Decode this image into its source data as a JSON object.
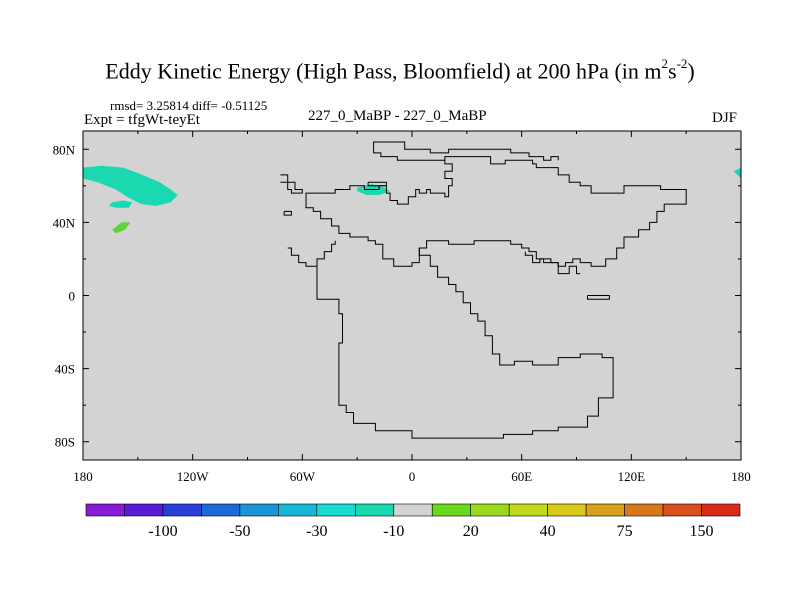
{
  "chart_data": {
    "type": "heatmap",
    "title_main": "Eddy Kinetic Energy (High Pass, Bloomfield) at 200 hPa (in m",
    "title_sup1": "2",
    "title_mid": "s",
    "title_sup2": "-2",
    "title_end": ")",
    "stats": "rmsd= 3.25814 diff= -0.51125",
    "left_label": "Expt = tfgWt-teyEt",
    "center_label": "227_0_MaBP - 227_0_MaBP",
    "right_label": "DJF",
    "x_ticks": [
      {
        "value": -180,
        "label": "180"
      },
      {
        "value": -120,
        "label": "120W"
      },
      {
        "value": -60,
        "label": "60W"
      },
      {
        "value": 0,
        "label": "0"
      },
      {
        "value": 60,
        "label": "60E"
      },
      {
        "value": 120,
        "label": "120E"
      },
      {
        "value": 180,
        "label": "180"
      }
    ],
    "y_ticks": [
      {
        "value": 80,
        "label": "80N"
      },
      {
        "value": 40,
        "label": "40N"
      },
      {
        "value": 0,
        "label": "0"
      },
      {
        "value": -40,
        "label": "40S"
      },
      {
        "value": -80,
        "label": "80S"
      }
    ],
    "xlim": [
      -180,
      180
    ],
    "ylim": [
      -90,
      90
    ],
    "background_color": "#d3d3d3",
    "colorbar": {
      "colors": [
        "#8a1ad9",
        "#5a1ad9",
        "#2a3fd9",
        "#1a6ad9",
        "#1a95d9",
        "#17b7d9",
        "#1ad9d0",
        "#1ad9b0",
        "#d3d3d3",
        "#6ad91a",
        "#9ad91a",
        "#c0d91a",
        "#d9c81a",
        "#d9a01a",
        "#d9781a",
        "#d9501a",
        "#d92a1a"
      ],
      "labels": [
        {
          "index": 2,
          "text": "-100"
        },
        {
          "index": 4,
          "text": "-50"
        },
        {
          "index": 6,
          "text": "-30"
        },
        {
          "index": 8,
          "text": "-10"
        },
        {
          "index": 10,
          "text": "20"
        },
        {
          "index": 12,
          "text": "40"
        },
        {
          "index": 14,
          "text": "75"
        },
        {
          "index": 16,
          "text": "150"
        }
      ]
    },
    "anomaly_regions": [
      {
        "name": "north-pacific-negative",
        "color": "#1ad9b0",
        "points": [
          [
            -180,
            70
          ],
          [
            -170,
            71
          ],
          [
            -158,
            70
          ],
          [
            -150,
            67
          ],
          [
            -138,
            62
          ],
          [
            -132,
            58
          ],
          [
            -128,
            55
          ],
          [
            -132,
            51
          ],
          [
            -140,
            49
          ],
          [
            -148,
            50
          ],
          [
            -156,
            54
          ],
          [
            -162,
            58
          ],
          [
            -172,
            62
          ],
          [
            -180,
            64
          ]
        ]
      },
      {
        "name": "pacific-small-negative",
        "color": "#1ad9b0",
        "points": [
          [
            -164,
            51
          ],
          [
            -158,
            52
          ],
          [
            -153,
            51
          ],
          [
            -155,
            48
          ],
          [
            -162,
            48
          ],
          [
            -166,
            49
          ]
        ]
      },
      {
        "name": "north-atlantic-negative",
        "color": "#1ad9b0",
        "points": [
          [
            -30,
            59
          ],
          [
            -22,
            61
          ],
          [
            -15,
            59
          ],
          [
            -12,
            57
          ],
          [
            -18,
            55
          ],
          [
            -25,
            55
          ],
          [
            -30,
            57
          ]
        ]
      },
      {
        "name": "pacific-positive",
        "color": "#5fd33a",
        "points": [
          [
            -164,
            36
          ],
          [
            -159,
            40
          ],
          [
            -154,
            40
          ],
          [
            -157,
            36
          ],
          [
            -162,
            34
          ]
        ]
      },
      {
        "name": "east-edge-negative",
        "color": "#1ad9b0",
        "points": [
          [
            176,
            68
          ],
          [
            180,
            70
          ],
          [
            180,
            64
          ]
        ]
      }
    ],
    "coastlines": [
      [
        [
          -21,
          84
        ],
        [
          -21,
          78
        ],
        [
          -17,
          78
        ],
        [
          -17,
          76
        ],
        [
          -8,
          76
        ],
        [
          -8,
          74
        ],
        [
          18,
          74
        ],
        [
          18,
          76
        ],
        [
          43,
          76
        ],
        [
          43,
          72
        ],
        [
          51,
          72
        ],
        [
          51,
          74
        ],
        [
          66,
          74
        ],
        [
          66,
          72
        ],
        [
          68,
          72
        ],
        [
          68,
          70
        ],
        [
          80,
          70
        ],
        [
          80,
          66
        ],
        [
          86,
          66
        ],
        [
          86,
          62
        ],
        [
          92,
          62
        ],
        [
          92,
          60
        ],
        [
          98,
          60
        ],
        [
          98,
          56
        ],
        [
          116,
          56
        ],
        [
          116,
          60
        ],
        [
          136,
          60
        ],
        [
          136,
          58
        ],
        [
          150,
          58
        ],
        [
          150,
          50
        ],
        [
          138,
          50
        ],
        [
          138,
          46
        ],
        [
          134,
          46
        ],
        [
          134,
          40
        ],
        [
          130,
          40
        ],
        [
          130,
          36
        ],
        [
          124,
          36
        ],
        [
          124,
          32
        ],
        [
          116,
          32
        ],
        [
          116,
          26
        ],
        [
          112,
          26
        ],
        [
          112,
          20
        ],
        [
          106,
          20
        ],
        [
          106,
          16
        ],
        [
          98,
          16
        ],
        [
          98,
          18
        ],
        [
          92,
          18
        ],
        [
          92,
          20
        ],
        [
          88,
          20
        ],
        [
          88,
          18
        ],
        [
          84,
          18
        ],
        [
          84,
          16
        ],
        [
          80,
          16
        ],
        [
          80,
          18
        ],
        [
          72,
          18
        ],
        [
          72,
          20
        ],
        [
          68,
          20
        ],
        [
          68,
          24
        ],
        [
          64,
          24
        ],
        [
          64,
          26
        ],
        [
          60,
          26
        ],
        [
          60,
          28
        ],
        [
          54,
          28
        ],
        [
          54,
          30
        ],
        [
          34,
          30
        ],
        [
          34,
          28
        ],
        [
          20,
          28
        ],
        [
          20,
          30
        ],
        [
          8,
          30
        ],
        [
          8,
          26
        ],
        [
          4,
          26
        ],
        [
          4,
          18
        ],
        [
          0,
          18
        ],
        [
          0,
          16
        ],
        [
          -10,
          16
        ],
        [
          -10,
          20
        ],
        [
          -16,
          20
        ],
        [
          -16,
          28
        ],
        [
          -20,
          28
        ],
        [
          -20,
          30
        ],
        [
          -24,
          30
        ],
        [
          -24,
          32
        ],
        [
          -34,
          32
        ],
        [
          -34,
          34
        ],
        [
          -40,
          34
        ],
        [
          -40,
          38
        ],
        [
          -44,
          38
        ],
        [
          -44,
          42
        ],
        [
          -50,
          42
        ],
        [
          -50,
          46
        ],
        [
          -54,
          46
        ],
        [
          -54,
          48
        ],
        [
          -58,
          48
        ],
        [
          -58,
          56
        ],
        [
          -42,
          56
        ],
        [
          -42,
          58
        ],
        [
          -34,
          58
        ],
        [
          -34,
          60
        ],
        [
          -26,
          60
        ],
        [
          -26,
          58
        ],
        [
          -18,
          58
        ],
        [
          -18,
          60
        ],
        [
          -14,
          60
        ],
        [
          -14,
          56
        ],
        [
          -12,
          56
        ],
        [
          -12,
          52
        ],
        [
          -8,
          52
        ],
        [
          -8,
          50
        ],
        [
          -2,
          50
        ],
        [
          -2,
          54
        ],
        [
          2,
          54
        ],
        [
          2,
          58
        ],
        [
          4,
          58
        ],
        [
          4,
          56
        ],
        [
          8,
          56
        ],
        [
          8,
          58
        ],
        [
          10,
          58
        ],
        [
          10,
          56
        ],
        [
          18,
          56
        ],
        [
          18,
          54
        ],
        [
          20,
          54
        ],
        [
          20,
          60
        ],
        [
          22,
          60
        ],
        [
          22,
          64
        ],
        [
          18,
          64
        ],
        [
          18,
          68
        ],
        [
          22,
          68
        ],
        [
          22,
          72
        ],
        [
          18,
          72
        ],
        [
          18,
          74
        ],
        [
          -8,
          74
        ],
        [
          -8,
          76
        ],
        [
          -17,
          76
        ],
        [
          -17,
          78
        ],
        [
          -21,
          78
        ],
        [
          -21,
          84
        ],
        [
          -4,
          84
        ],
        [
          -4,
          80
        ],
        [
          10,
          80
        ],
        [
          10,
          78
        ],
        [
          20,
          78
        ],
        [
          20,
          80
        ],
        [
          54,
          80
        ],
        [
          54,
          78
        ],
        [
          64,
          78
        ],
        [
          64,
          76
        ],
        [
          72,
          76
        ],
        [
          72,
          74
        ],
        [
          76,
          74
        ],
        [
          76,
          76
        ],
        [
          80,
          76
        ],
        [
          80,
          74
        ]
      ],
      [
        [
          -72,
          66
        ],
        [
          -68,
          66
        ],
        [
          -68,
          62
        ],
        [
          -64,
          62
        ],
        [
          -64,
          58
        ],
        [
          -60,
          58
        ],
        [
          -60,
          56
        ],
        [
          -66,
          56
        ],
        [
          -66,
          58
        ],
        [
          -68,
          58
        ],
        [
          -68,
          62
        ],
        [
          -72,
          62
        ]
      ],
      [
        [
          -70,
          46
        ],
        [
          -66,
          46
        ],
        [
          -66,
          44
        ],
        [
          -70,
          44
        ],
        [
          -70,
          46
        ]
      ],
      [
        [
          -68,
          26
        ],
        [
          -66,
          26
        ],
        [
          -66,
          22
        ],
        [
          -62,
          22
        ],
        [
          -62,
          18
        ],
        [
          -58,
          18
        ],
        [
          -58,
          16
        ],
        [
          -52,
          16
        ],
        [
          -52,
          20
        ],
        [
          -48,
          20
        ],
        [
          -48,
          24
        ],
        [
          -44,
          24
        ],
        [
          -44,
          28
        ],
        [
          -42,
          28
        ],
        [
          -42,
          30
        ]
      ],
      [
        [
          -52,
          16
        ],
        [
          -52,
          -2
        ],
        [
          -40,
          -2
        ],
        [
          -40,
          -10
        ],
        [
          -38,
          -10
        ],
        [
          -38,
          -26
        ],
        [
          -40,
          -26
        ],
        [
          -40,
          -60
        ],
        [
          -36,
          -60
        ],
        [
          -36,
          -64
        ],
        [
          -32,
          -64
        ],
        [
          -32,
          -70
        ],
        [
          -20,
          -70
        ],
        [
          -20,
          -74
        ],
        [
          0,
          -74
        ],
        [
          0,
          -78
        ],
        [
          50,
          -78
        ],
        [
          50,
          -76
        ],
        [
          66,
          -76
        ],
        [
          66,
          -74
        ],
        [
          80,
          -74
        ],
        [
          80,
          -72
        ],
        [
          96,
          -72
        ],
        [
          96,
          -66
        ],
        [
          102,
          -66
        ],
        [
          102,
          -56
        ],
        [
          110,
          -56
        ],
        [
          110,
          -34
        ],
        [
          104,
          -34
        ],
        [
          104,
          -32
        ],
        [
          92,
          -32
        ],
        [
          92,
          -34
        ],
        [
          80,
          -34
        ],
        [
          80,
          -38
        ],
        [
          66,
          -38
        ],
        [
          66,
          -36
        ],
        [
          56,
          -36
        ],
        [
          56,
          -38
        ],
        [
          48,
          -38
        ],
        [
          48,
          -32
        ],
        [
          44,
          -32
        ],
        [
          44,
          -22
        ],
        [
          40,
          -22
        ],
        [
          40,
          -14
        ],
        [
          36,
          -14
        ],
        [
          36,
          -10
        ],
        [
          32,
          -10
        ],
        [
          32,
          -4
        ],
        [
          28,
          -4
        ],
        [
          28,
          2
        ],
        [
          24,
          2
        ],
        [
          24,
          6
        ],
        [
          20,
          6
        ],
        [
          20,
          10
        ],
        [
          14,
          10
        ],
        [
          14,
          16
        ],
        [
          10,
          16
        ],
        [
          10,
          22
        ],
        [
          4,
          22
        ],
        [
          4,
          26
        ]
      ],
      [
        [
          62,
          24
        ],
        [
          62,
          22
        ],
        [
          66,
          22
        ],
        [
          66,
          18
        ],
        [
          70,
          18
        ],
        [
          70,
          20
        ],
        [
          76,
          20
        ],
        [
          76,
          18
        ],
        [
          80,
          18
        ],
        [
          80,
          12
        ],
        [
          86,
          12
        ],
        [
          86,
          16
        ],
        [
          90,
          16
        ],
        [
          90,
          12
        ],
        [
          92,
          12
        ]
      ],
      [
        [
          96,
          0
        ],
        [
          96,
          -2
        ],
        [
          108,
          -2
        ],
        [
          108,
          0
        ],
        [
          96,
          0
        ]
      ],
      [
        [
          -24,
          62
        ],
        [
          -14,
          62
        ],
        [
          -14,
          60
        ],
        [
          -24,
          60
        ],
        [
          -24,
          62
        ]
      ]
    ]
  }
}
